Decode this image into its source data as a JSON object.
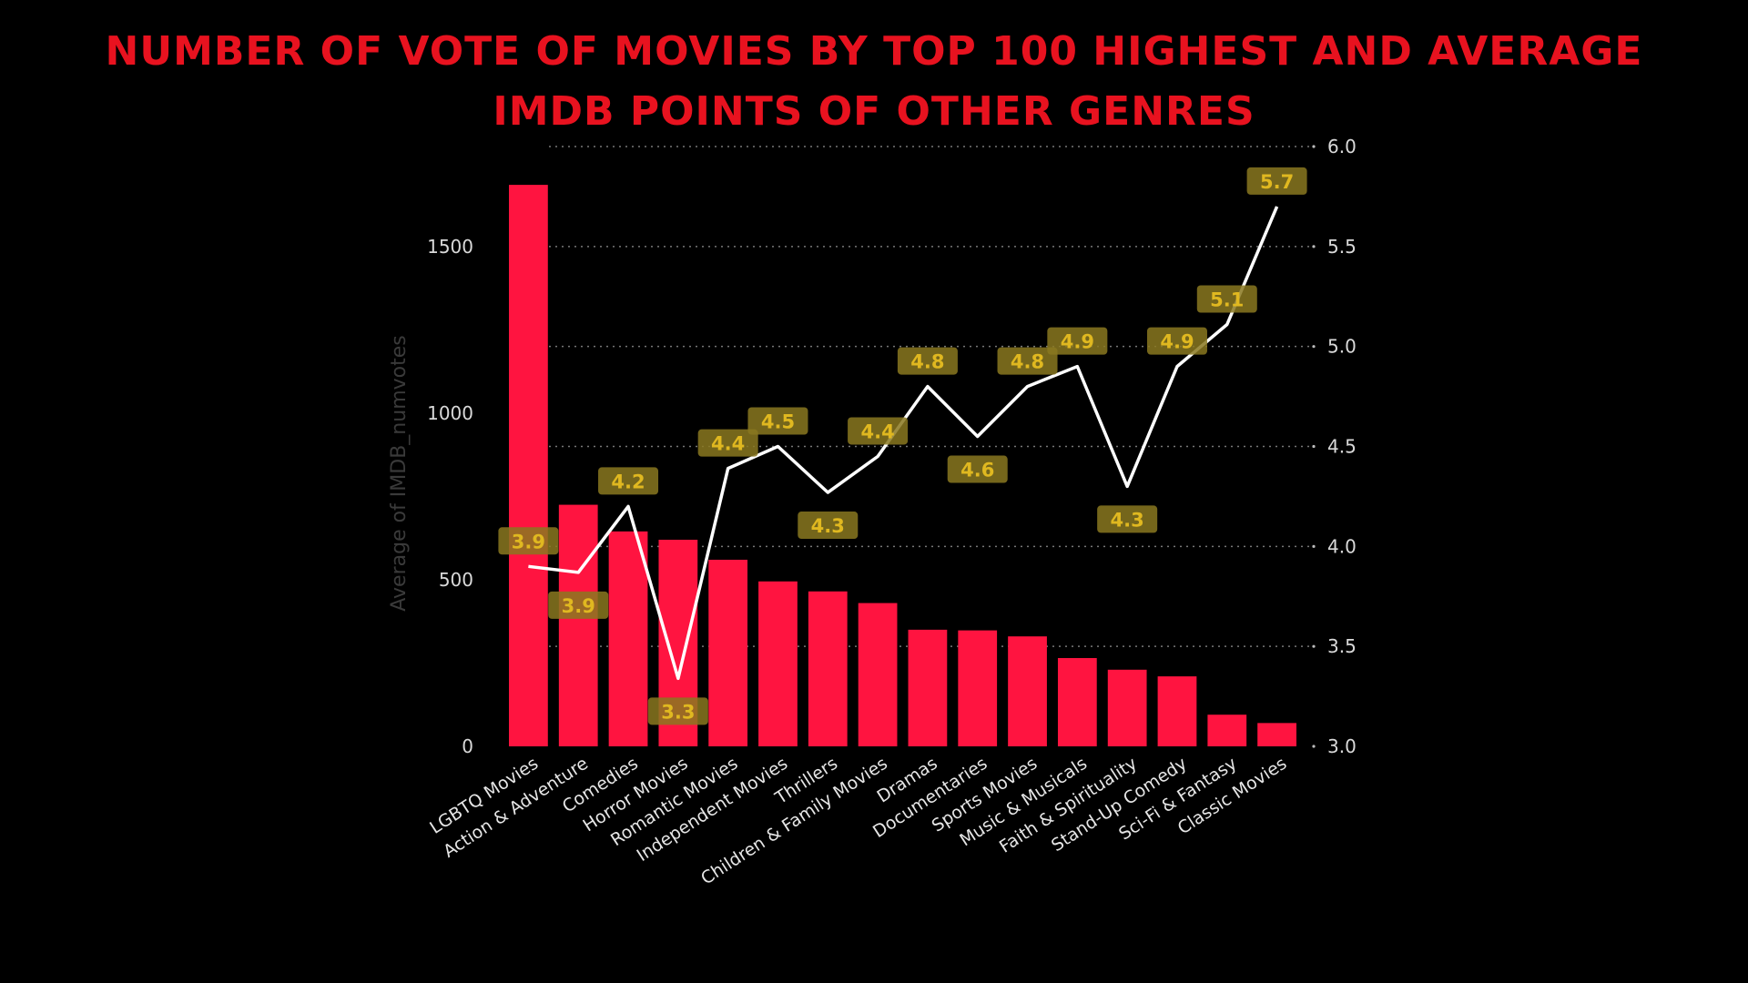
{
  "title": "Number of vote of movies by Top 100 highest and  Average IMDB points of other genres",
  "chart_data": {
    "type": "bar+line",
    "categories": [
      "LGBTQ Movies",
      "Action & Adventure",
      "Comedies",
      "Horror Movies",
      "Romantic Movies",
      "Independent Movies",
      "Thrillers",
      "Children & Family Movies",
      "Dramas",
      "Documentaries",
      "Sports Movies",
      "Music & Musicals",
      "Faith & Spirituality",
      "Stand-Up Comedy",
      "Sci-Fi & Fantasy",
      "Classic Movies"
    ],
    "bar_series": {
      "axis": "left",
      "values": [
        1685,
        725,
        645,
        620,
        560,
        495,
        465,
        430,
        350,
        348,
        330,
        265,
        230,
        210,
        95,
        70
      ]
    },
    "line_series": {
      "axis": "right",
      "values": [
        3.9,
        3.87,
        4.2,
        3.34,
        4.39,
        4.5,
        4.27,
        4.45,
        4.8,
        4.55,
        4.8,
        4.9,
        4.3,
        4.9,
        5.11,
        5.7
      ],
      "data_labels": [
        "3.9",
        "3.9",
        "4.2",
        "3.3",
        "4.4",
        "4.5",
        "4.3",
        "4.4",
        "4.8",
        "4.6",
        "4.8",
        "4.9",
        "4.3",
        "4.9",
        "5.1",
        "5.7"
      ]
    },
    "ylabel": "Average of IMDB_numvotes",
    "y_left": {
      "min": 0,
      "max": 1800,
      "ticks": [
        "0",
        "500",
        "1000",
        "1500"
      ],
      "tick_values": [
        0,
        500,
        1000,
        1500
      ]
    },
    "y_right": {
      "min": 3.0,
      "max": 6.0,
      "ticks": [
        "3.0",
        "3.5",
        "4.0",
        "4.5",
        "5.0",
        "5.5",
        "6.0"
      ],
      "tick_values": [
        3.0,
        3.5,
        4.0,
        4.5,
        5.0,
        5.5,
        6.0
      ]
    },
    "grid": true,
    "colors": {
      "bar": "#ff1440",
      "line": "#ffffff",
      "label_bg": "#8a7820",
      "label_text": "#e0b820",
      "grid": "#777777",
      "title": "#e8121f"
    }
  }
}
